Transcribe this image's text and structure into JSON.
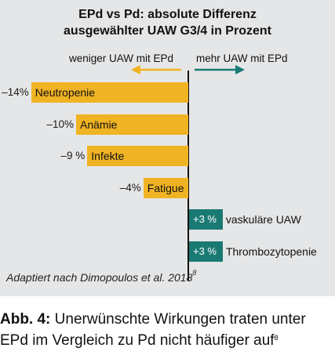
{
  "chart_data": {
    "type": "bar",
    "orientation": "horizontal",
    "title_line1": "EPd vs Pd: absolute Differenz",
    "title_line2": "ausgewählter UAW G3/4 in Prozent",
    "left_direction_label": "weniger UAW mit EPd",
    "right_direction_label": "mehr UAW mit EPd",
    "categories": [
      "Neutropenie",
      "Anämie",
      "Infekte",
      "Fatigue",
      "vaskuläre UAW",
      "Thrombozytopenie"
    ],
    "values": [
      -14,
      -10,
      -9,
      -4,
      3,
      3
    ],
    "value_labels": [
      "–14%",
      "–10%",
      "–9 %",
      "–4%",
      "+3 %",
      "+3 %"
    ],
    "xlim": [
      -14,
      6
    ],
    "colors": {
      "negative": "#f0b323",
      "positive": "#1a7a73"
    }
  },
  "source": {
    "text": "Adaptiert nach Dimopoulos et al. 2018",
    "ref": "8"
  },
  "caption": {
    "bold": "Abb. 4:",
    "text1": " Unerwünschte Wirkungen traten unter",
    "text2": "EPd im Vergleich zu Pd nicht häufiger auf",
    "ref": "8"
  }
}
